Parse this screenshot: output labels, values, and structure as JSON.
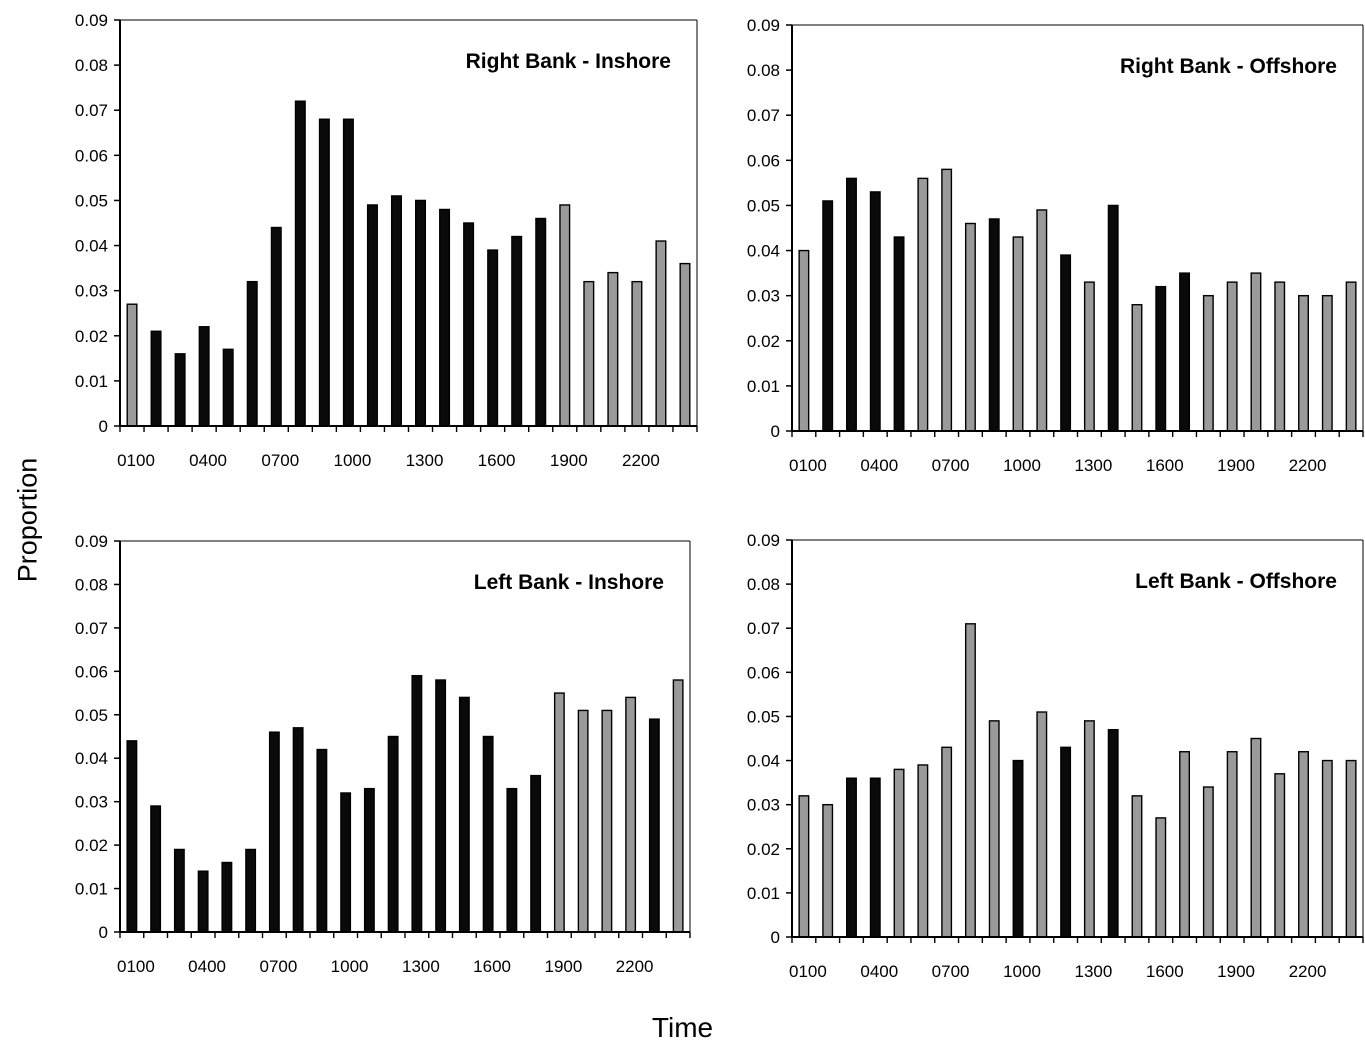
{
  "figure": {
    "ylabel": "Proportion",
    "xlabel": "Time"
  },
  "colors": {
    "dark": "#0a0a0a",
    "light": "#9a9a9a",
    "axis": "#000000"
  },
  "chart_data": [
    {
      "type": "bar",
      "title": "Right Bank - Inshore",
      "ylim": [
        0,
        0.09
      ],
      "yticks": [
        "0.09",
        "0.08",
        "0.07",
        "0.06",
        "0.05",
        "0.04",
        "0.03",
        "0.02",
        "0.01",
        "0"
      ],
      "xtick_labels": [
        "0100",
        "0400",
        "0700",
        "1000",
        "1300",
        "1600",
        "1900",
        "2200"
      ],
      "categories": [
        "0100",
        "0200",
        "0300",
        "0400",
        "0500",
        "0600",
        "0700",
        "0800",
        "0900",
        "1000",
        "1100",
        "1200",
        "1300",
        "1400",
        "1500",
        "1600",
        "1700",
        "1800",
        "1900",
        "2000",
        "2100",
        "2200",
        "2300",
        "2400"
      ],
      "values": [
        0.027,
        0.021,
        0.016,
        0.022,
        0.017,
        0.032,
        0.044,
        0.072,
        0.068,
        0.068,
        0.049,
        0.051,
        0.05,
        0.048,
        0.045,
        0.039,
        0.042,
        0.046,
        0.049,
        0.032,
        0.034,
        0.032,
        0.041,
        0.036
      ],
      "shades": [
        "light",
        "dark",
        "dark",
        "dark",
        "dark",
        "dark",
        "dark",
        "dark",
        "dark",
        "dark",
        "dark",
        "dark",
        "dark",
        "dark",
        "dark",
        "dark",
        "dark",
        "dark",
        "light",
        "light",
        "light",
        "light",
        "light",
        "light"
      ]
    },
    {
      "type": "bar",
      "title": "Right Bank - Offshore",
      "ylim": [
        0,
        0.09
      ],
      "yticks": [
        "0.09",
        "0.08",
        "0.07",
        "0.06",
        "0.05",
        "0.04",
        "0.03",
        "0.02",
        "0.01",
        "0"
      ],
      "xtick_labels": [
        "0100",
        "0400",
        "0700",
        "1000",
        "1300",
        "1600",
        "1900",
        "2200"
      ],
      "categories": [
        "0100",
        "0200",
        "0300",
        "0400",
        "0500",
        "0600",
        "0700",
        "0800",
        "0900",
        "1000",
        "1100",
        "1200",
        "1300",
        "1400",
        "1500",
        "1600",
        "1700",
        "1800",
        "1900",
        "2000",
        "2100",
        "2200",
        "2300",
        "2400"
      ],
      "values": [
        0.04,
        0.051,
        0.056,
        0.053,
        0.043,
        0.056,
        0.058,
        0.046,
        0.047,
        0.043,
        0.049,
        0.039,
        0.033,
        0.05,
        0.028,
        0.032,
        0.035,
        0.03,
        0.033,
        0.035,
        0.033,
        0.03,
        0.03,
        0.033
      ],
      "shades": [
        "light",
        "dark",
        "dark",
        "dark",
        "dark",
        "light",
        "light",
        "light",
        "dark",
        "light",
        "light",
        "dark",
        "light",
        "dark",
        "light",
        "dark",
        "dark",
        "light",
        "light",
        "light",
        "light",
        "light",
        "light",
        "light"
      ]
    },
    {
      "type": "bar",
      "title": "Left Bank - Inshore",
      "ylim": [
        0,
        0.09
      ],
      "yticks": [
        "0.09",
        "0.08",
        "0.07",
        "0.06",
        "0.05",
        "0.04",
        "0.03",
        "0.02",
        "0.01",
        "0"
      ],
      "xtick_labels": [
        "0100",
        "0400",
        "0700",
        "1000",
        "1300",
        "1600",
        "1900",
        "2200"
      ],
      "categories": [
        "0100",
        "0200",
        "0300",
        "0400",
        "0500",
        "0600",
        "0700",
        "0800",
        "0900",
        "1000",
        "1100",
        "1200",
        "1300",
        "1400",
        "1500",
        "1600",
        "1700",
        "1800",
        "1900",
        "2000",
        "2100",
        "2200",
        "2300",
        "2400"
      ],
      "values": [
        0.044,
        0.029,
        0.019,
        0.014,
        0.016,
        0.019,
        0.046,
        0.047,
        0.042,
        0.032,
        0.033,
        0.045,
        0.059,
        0.058,
        0.054,
        0.045,
        0.033,
        0.036,
        0.055,
        0.051,
        0.051,
        0.054,
        0.049,
        0.058
      ],
      "shades": [
        "dark",
        "dark",
        "dark",
        "dark",
        "dark",
        "dark",
        "dark",
        "dark",
        "dark",
        "dark",
        "dark",
        "dark",
        "dark",
        "dark",
        "dark",
        "dark",
        "dark",
        "dark",
        "light",
        "light",
        "light",
        "light",
        "dark",
        "light"
      ]
    },
    {
      "type": "bar",
      "title": "Left Bank - Offshore",
      "ylim": [
        0,
        0.09
      ],
      "yticks": [
        "0.09",
        "0.08",
        "0.07",
        "0.06",
        "0.05",
        "0.04",
        "0.03",
        "0.02",
        "0.01",
        "0"
      ],
      "xtick_labels": [
        "0100",
        "0400",
        "0700",
        "1000",
        "1300",
        "1600",
        "1900",
        "2200"
      ],
      "categories": [
        "0100",
        "0200",
        "0300",
        "0400",
        "0500",
        "0600",
        "0700",
        "0800",
        "0900",
        "1000",
        "1100",
        "1200",
        "1300",
        "1400",
        "1500",
        "1600",
        "1700",
        "1800",
        "1900",
        "2000",
        "2100",
        "2200",
        "2300",
        "2400"
      ],
      "values": [
        0.032,
        0.03,
        0.036,
        0.036,
        0.038,
        0.039,
        0.043,
        0.071,
        0.049,
        0.04,
        0.051,
        0.043,
        0.049,
        0.047,
        0.032,
        0.027,
        0.042,
        0.034,
        0.042,
        0.045,
        0.037,
        0.042,
        0.04,
        0.04
      ],
      "shades": [
        "light",
        "light",
        "dark",
        "dark",
        "light",
        "light",
        "light",
        "light",
        "light",
        "dark",
        "light",
        "dark",
        "light",
        "dark",
        "light",
        "light",
        "light",
        "light",
        "light",
        "light",
        "light",
        "light",
        "light",
        "light"
      ]
    }
  ]
}
